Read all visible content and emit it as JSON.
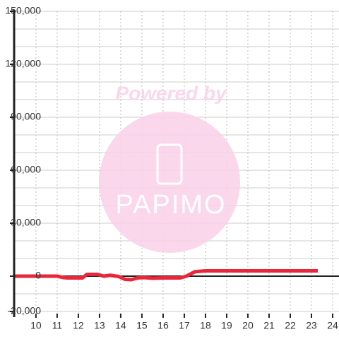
{
  "chart_data": {
    "type": "line",
    "watermark": {
      "title": "Powered by",
      "logo": "PAPIMO"
    },
    "x": [
      9,
      11,
      11.3,
      11.5,
      12.2,
      12.4,
      12.9,
      13.2,
      13.5,
      13.9,
      14.2,
      14.5,
      14.8,
      15.1,
      15.5,
      16,
      16.8,
      17.1,
      17.5,
      18,
      23.3
    ],
    "series": [
      {
        "color": "#e8283a",
        "values": [
          0,
          0,
          -800,
          -1000,
          -1000,
          1000,
          1000,
          0,
          500,
          -200,
          -1800,
          -2000,
          -1000,
          -800,
          -1200,
          -1000,
          -1000,
          0,
          2500,
          3000,
          3000
        ]
      }
    ],
    "xlim": [
      8.97,
      24.3
    ],
    "xticks": [
      10,
      11,
      12,
      13,
      14,
      15,
      16,
      17,
      18,
      19,
      20,
      21,
      22,
      23,
      24
    ],
    "ylim": [
      -20000,
      150000
    ],
    "yticks": [
      {
        "value": -20000,
        "label": "-20,000"
      },
      0,
      {
        "value": 30000,
        "label": "30,000"
      },
      {
        "value": 60000,
        "label": "60,000"
      },
      {
        "value": 90000,
        "label": "90,000"
      },
      {
        "value": 120000,
        "label": "120,000"
      },
      {
        "value": 150000,
        "label": "150,000"
      }
    ],
    "minor_yticks": [
      -10000,
      10000,
      20000,
      40000,
      50000,
      70000,
      80000,
      100000,
      110000,
      130000,
      140000
    ],
    "grid": true
  }
}
